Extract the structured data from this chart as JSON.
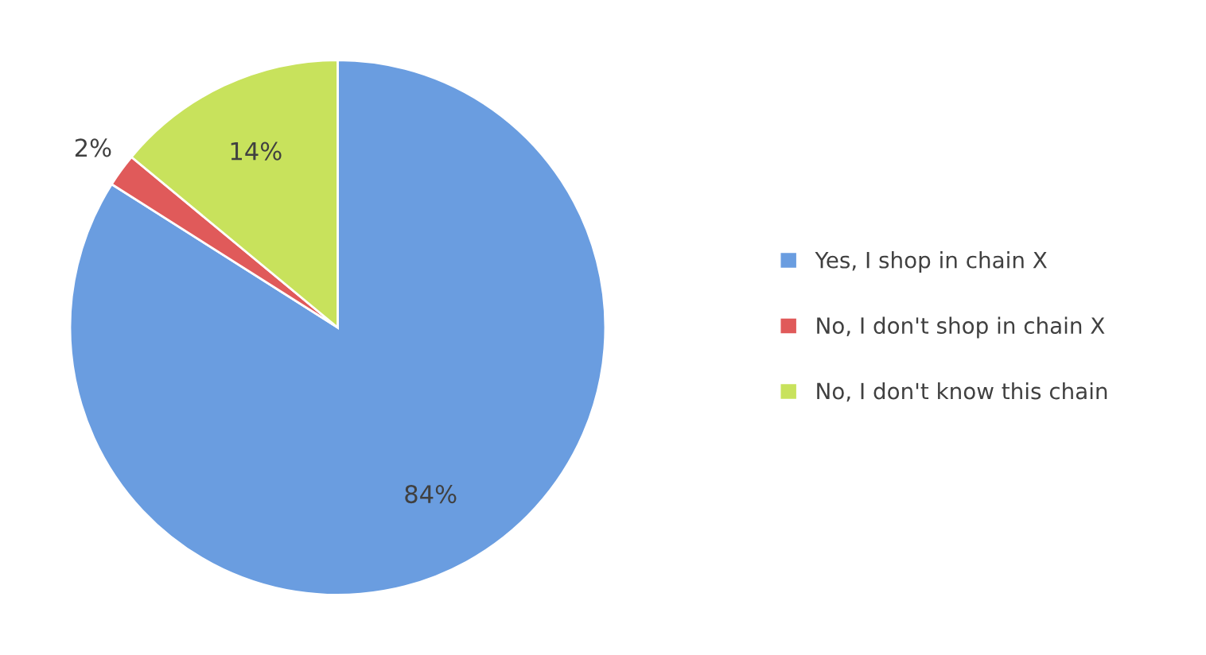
{
  "chart_data": {
    "type": "pie",
    "categories": [
      "Yes, I shop in chain X",
      "No, I don't shop in chain X",
      "No, I don't know this chain"
    ],
    "values": [
      84,
      2,
      14
    ],
    "colors": [
      "#6a9de0",
      "#e05a5a",
      "#c8e25c"
    ],
    "value_labels": [
      "84%",
      "2%",
      "14%"
    ],
    "legend": "right"
  }
}
